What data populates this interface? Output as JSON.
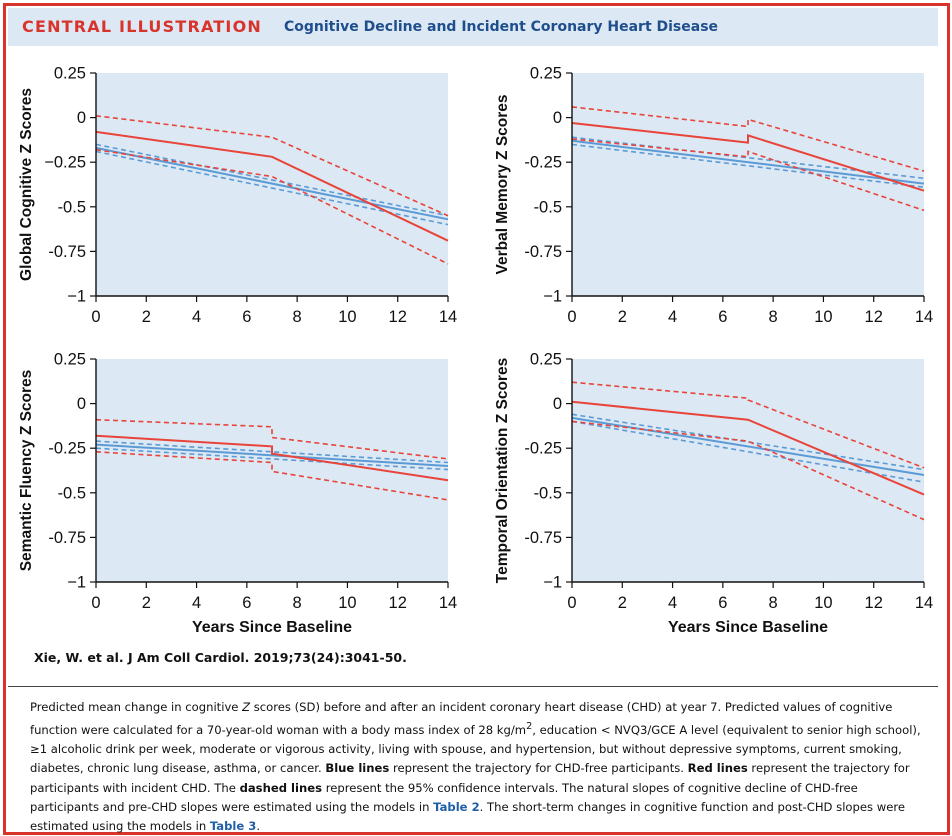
{
  "header": {
    "label": "CENTRAL ILLUSTRATION",
    "title": "Cognitive Decline and Incident Coronary Heart Disease"
  },
  "colors": {
    "red": "#e8443a",
    "blue": "#5b9bd5",
    "panel_bg": "#dce8f4",
    "frame": "#d9342b",
    "title_blue": "#1f4e8c"
  },
  "chart_data": [
    {
      "type": "line",
      "ylabel": "Global Cognitive Z Scores",
      "xlabel": "",
      "xlim": [
        0,
        14
      ],
      "ylim": [
        -1,
        0.25
      ],
      "xticks": [
        0,
        2,
        4,
        6,
        8,
        10,
        12,
        14
      ],
      "yticks": [
        0.25,
        0,
        -0.25,
        -0.5,
        -0.75,
        -1
      ],
      "ytick_labels": [
        "0.25",
        "0",
        "−0.25",
        "-0.5",
        "-0.75",
        "−1"
      ],
      "xtick_labels": [
        "0",
        "2",
        "4",
        "6",
        "8",
        "10",
        "12",
        "14"
      ],
      "grid": false,
      "series": [
        {
          "color": "blue",
          "style": "solid",
          "x": [
            0,
            14
          ],
          "y": [
            -0.17,
            -0.57
          ]
        },
        {
          "color": "blue",
          "style": "dashed",
          "x": [
            0,
            14
          ],
          "y": [
            -0.15,
            -0.55
          ]
        },
        {
          "color": "blue",
          "style": "dashed",
          "x": [
            0,
            14
          ],
          "y": [
            -0.19,
            -0.6
          ]
        },
        {
          "color": "red",
          "style": "solid",
          "x": [
            0,
            7,
            7,
            14
          ],
          "y": [
            -0.08,
            -0.22,
            -0.22,
            -0.69
          ]
        },
        {
          "color": "red",
          "style": "dashed",
          "x": [
            0,
            7,
            7,
            14
          ],
          "y": [
            0.01,
            -0.11,
            -0.11,
            -0.55
          ]
        },
        {
          "color": "red",
          "style": "dashed",
          "x": [
            0,
            7,
            7,
            14
          ],
          "y": [
            -0.18,
            -0.33,
            -0.33,
            -0.82
          ]
        }
      ]
    },
    {
      "type": "line",
      "ylabel": "Verbal Memory Z Scores",
      "xlabel": "",
      "xlim": [
        0,
        14
      ],
      "ylim": [
        -1,
        0.25
      ],
      "xticks": [
        0,
        2,
        4,
        6,
        8,
        10,
        12,
        14
      ],
      "yticks": [
        0.25,
        0,
        -0.25,
        -0.5,
        -0.75,
        -1
      ],
      "ytick_labels": [
        "0.25",
        "0",
        "-0.25",
        "-0.5",
        "-0.75",
        "−1"
      ],
      "xtick_labels": [
        "0",
        "2",
        "4",
        "6",
        "8",
        "10",
        "12",
        "14"
      ],
      "grid": false,
      "series": [
        {
          "color": "blue",
          "style": "solid",
          "x": [
            0,
            14
          ],
          "y": [
            -0.13,
            -0.37
          ]
        },
        {
          "color": "blue",
          "style": "dashed",
          "x": [
            0,
            14
          ],
          "y": [
            -0.11,
            -0.34
          ]
        },
        {
          "color": "blue",
          "style": "dashed",
          "x": [
            0,
            14
          ],
          "y": [
            -0.15,
            -0.39
          ]
        },
        {
          "color": "red",
          "style": "solid",
          "x": [
            0,
            7,
            7,
            14
          ],
          "y": [
            -0.03,
            -0.14,
            -0.1,
            -0.41
          ]
        },
        {
          "color": "red",
          "style": "dashed",
          "x": [
            0,
            7,
            7,
            14
          ],
          "y": [
            0.06,
            -0.05,
            -0.01,
            -0.3
          ]
        },
        {
          "color": "red",
          "style": "dashed",
          "x": [
            0,
            7,
            7,
            14
          ],
          "y": [
            -0.12,
            -0.22,
            -0.19,
            -0.52
          ]
        }
      ]
    },
    {
      "type": "line",
      "ylabel": "Semantic Fluency Z Scores",
      "xlabel": "Years Since Baseline",
      "xlim": [
        0,
        14
      ],
      "ylim": [
        -1,
        0.25
      ],
      "xticks": [
        0,
        2,
        4,
        6,
        8,
        10,
        12,
        14
      ],
      "yticks": [
        0.25,
        0,
        -0.25,
        -0.5,
        -0.75,
        -1
      ],
      "ytick_labels": [
        "0.25",
        "0",
        "-0.25",
        "-0.5",
        "-0.75",
        "−1"
      ],
      "xtick_labels": [
        "0",
        "2",
        "4",
        "6",
        "8",
        "10",
        "12",
        "14"
      ],
      "grid": false,
      "series": [
        {
          "color": "blue",
          "style": "solid",
          "x": [
            0,
            14
          ],
          "y": [
            -0.23,
            -0.35
          ]
        },
        {
          "color": "blue",
          "style": "dashed",
          "x": [
            0,
            14
          ],
          "y": [
            -0.21,
            -0.33
          ]
        },
        {
          "color": "blue",
          "style": "dashed",
          "x": [
            0,
            14
          ],
          "y": [
            -0.25,
            -0.37
          ]
        },
        {
          "color": "red",
          "style": "solid",
          "x": [
            0,
            7,
            7,
            14
          ],
          "y": [
            -0.18,
            -0.24,
            -0.28,
            -0.43
          ]
        },
        {
          "color": "red",
          "style": "dashed",
          "x": [
            0,
            7,
            7,
            14
          ],
          "y": [
            -0.09,
            -0.13,
            -0.19,
            -0.31
          ]
        },
        {
          "color": "red",
          "style": "dashed",
          "x": [
            0,
            7,
            7,
            14
          ],
          "y": [
            -0.27,
            -0.33,
            -0.38,
            -0.54
          ]
        }
      ]
    },
    {
      "type": "line",
      "ylabel": "Temporal Orientation Z Scores",
      "xlabel": "Years Since Baseline",
      "xlim": [
        0,
        14
      ],
      "ylim": [
        -1,
        0.25
      ],
      "xticks": [
        0,
        2,
        4,
        6,
        8,
        10,
        12,
        14
      ],
      "yticks": [
        0.25,
        0,
        -0.25,
        -0.5,
        -0.75,
        -1
      ],
      "ytick_labels": [
        "0.25",
        "0",
        "-0.25",
        "-0.5",
        "-0.75",
        "−1"
      ],
      "xtick_labels": [
        "0",
        "2",
        "4",
        "6",
        "8",
        "10",
        "12",
        "14"
      ],
      "grid": false,
      "series": [
        {
          "color": "blue",
          "style": "solid",
          "x": [
            0,
            14
          ],
          "y": [
            -0.08,
            -0.4
          ]
        },
        {
          "color": "blue",
          "style": "dashed",
          "x": [
            0,
            14
          ],
          "y": [
            -0.06,
            -0.37
          ]
        },
        {
          "color": "blue",
          "style": "dashed",
          "x": [
            0,
            14
          ],
          "y": [
            -0.1,
            -0.44
          ]
        },
        {
          "color": "red",
          "style": "solid",
          "x": [
            0,
            7,
            7,
            14
          ],
          "y": [
            0.01,
            -0.09,
            -0.09,
            -0.51
          ]
        },
        {
          "color": "red",
          "style": "dashed",
          "x": [
            0,
            7,
            7,
            14
          ],
          "y": [
            0.12,
            0.03,
            0.02,
            -0.36
          ]
        },
        {
          "color": "red",
          "style": "dashed",
          "x": [
            0,
            7,
            7,
            14
          ],
          "y": [
            -0.1,
            -0.21,
            -0.21,
            -0.65
          ]
        }
      ]
    }
  ],
  "citation": "Xie, W. et al. J Am Coll Cardiol. 2019;73(24):3041-50.",
  "caption": {
    "part1": "Predicted mean change in cognitive ",
    "z": "Z",
    "part2": " scores (SD) before and after an incident coronary heart disease (CHD) at year 7. Predicted values of cognitive function were calculated for a 70-year-old woman with a body mass index of 28 kg/m",
    "sup": "2",
    "part3": ", education < NVQ3/GCE A level (equivalent to senior high school), ≥1 alcoholic drink per week, moderate or vigorous activity, living with spouse, and hypertension, but without depressive symptoms, current smoking, diabetes, chronic lung disease, asthma, or cancer. ",
    "blue_lines": "Blue lines",
    "part4": " represent the trajectory for CHD-free participants. ",
    "red_lines": "Red lines",
    "part5": " represent the trajectory for participants with incident CHD. The ",
    "dashed_lines": "dashed lines",
    "part6": " represent the 95% confidence intervals. The natural slopes of cognitive decline of CHD-free participants and pre-CHD slopes were estimated using the models in ",
    "table2": "Table 2",
    "part7": ". The short-term changes in cognitive function and post-CHD slopes were estimated using the models in ",
    "table3": "Table 3",
    "part8": "."
  }
}
